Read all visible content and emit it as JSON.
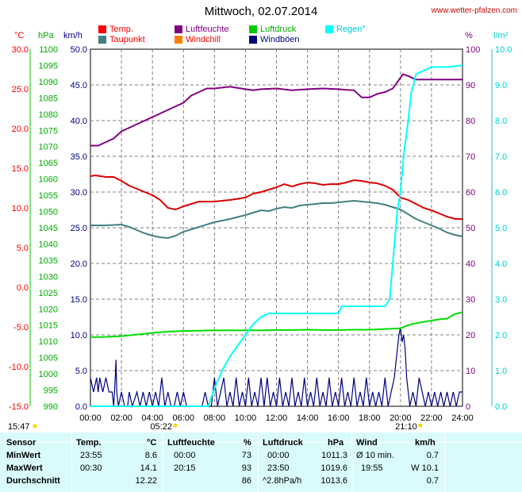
{
  "title": "Mittwoch, 02.07.2014",
  "url": "www.wetter-pfalzen.com",
  "legend": [
    {
      "label": "Temp.",
      "color": "#ff0000"
    },
    {
      "label": "Luftfeuchte",
      "color": "#800080"
    },
    {
      "label": "Luftdruck",
      "color": "#00cc00"
    },
    {
      "label": "Regen°",
      "color": "#00ffff"
    },
    {
      "label": "Taupunkt",
      "color": "#408080"
    },
    {
      "label": "Windchill",
      "color": "#ff8000"
    },
    {
      "label": "Windböen",
      "color": "#000080"
    }
  ],
  "units": {
    "temp": "°C",
    "press": "hPa",
    "wind": "km/h",
    "hum": "%",
    "rain": "l/m²"
  },
  "colors": {
    "temp": "#dd0000",
    "dew": "#408080",
    "hum": "#800080",
    "press": "#00dd00",
    "rain": "#00ffff",
    "gust": "#000080",
    "grid": "#808080",
    "bg": "#ffffff"
  },
  "chart_data": {
    "type": "line",
    "x_ticks": [
      "00:00",
      "02:00",
      "04:00",
      "06:00",
      "08:00",
      "10:00",
      "12:00",
      "14:00",
      "16:00",
      "18:00",
      "20:00",
      "22:00",
      "24:00"
    ],
    "axes": {
      "temp": {
        "ticks": [
          "30.0",
          "25.0",
          "20.0",
          "15.0",
          "10.0",
          "5.0",
          "0.0",
          "-5.0",
          "-10.0",
          "-15.0"
        ],
        "range": [
          -15,
          30
        ]
      },
      "press": {
        "ticks": [
          "1100",
          "1095",
          "1090",
          "1085",
          "1080",
          "1075",
          "1070",
          "1065",
          "1060",
          "1055",
          "1050",
          "1045",
          "1040",
          "1035",
          "1030",
          "1025",
          "1020",
          "1015",
          "1010",
          "1005",
          "1000",
          "995",
          "990"
        ],
        "range": [
          990,
          1100
        ]
      },
      "wind": {
        "ticks": [
          "50.0",
          "45.0",
          "40.0",
          "35.0",
          "30.0",
          "25.0",
          "20.0",
          "15.0",
          "10.0",
          "5.0",
          "0.0"
        ],
        "range": [
          0,
          50
        ]
      },
      "hum": {
        "ticks": [
          "100",
          "90",
          "80",
          "70",
          "60",
          "50",
          "40",
          "30",
          "20",
          "10",
          "0"
        ],
        "range": [
          0,
          100
        ]
      },
      "rain": {
        "ticks": [
          "10.0",
          "9.0",
          "8.0",
          "7.0",
          "6.0",
          "5.0",
          "4.0",
          "3.0",
          "2.0",
          "1.0",
          "0.0"
        ],
        "range": [
          0,
          10
        ]
      }
    },
    "series": [
      {
        "name": "Temp.",
        "axis": "temp",
        "x": [
          0,
          0.3,
          1,
          1.5,
          2,
          2.5,
          3,
          3.5,
          4,
          4.5,
          5,
          5.5,
          6,
          7,
          8,
          9,
          10,
          10.5,
          11,
          11.5,
          12,
          12.5,
          13,
          13.5,
          14,
          14.5,
          15,
          15.5,
          16,
          16.5,
          17,
          17.5,
          18,
          18.5,
          19,
          19.5,
          20,
          20.5,
          21,
          21.5,
          22,
          22.5,
          23,
          23.55,
          24
        ],
        "y": [
          14.0,
          14.1,
          13.9,
          13.9,
          13.4,
          12.8,
          12.4,
          12.0,
          11.6,
          11.0,
          10.0,
          9.8,
          10.2,
          10.8,
          10.8,
          11.0,
          11.3,
          11.8,
          12.0,
          12.3,
          12.6,
          13.0,
          12.7,
          13.0,
          13.2,
          13.1,
          12.9,
          13.0,
          13.0,
          13.2,
          13.5,
          13.4,
          13.2,
          13.1,
          12.8,
          12.3,
          11.3,
          11.0,
          10.5,
          10.0,
          9.7,
          9.3,
          8.9,
          8.6,
          8.6
        ]
      },
      {
        "name": "Taupunkt",
        "axis": "temp",
        "x": [
          0,
          1,
          2,
          2.5,
          3,
          3.5,
          4,
          4.5,
          5,
          5.5,
          6,
          7,
          8,
          9,
          10,
          10.5,
          11,
          11.5,
          12,
          12.5,
          13,
          13.5,
          14,
          14.5,
          15,
          15.5,
          16,
          16.5,
          17,
          17.5,
          18,
          18.5,
          19,
          19.5,
          20,
          20.5,
          21,
          21.5,
          22,
          22.5,
          23,
          23.5,
          24
        ],
        "y": [
          7.8,
          7.8,
          7.9,
          7.6,
          7.2,
          6.8,
          6.5,
          6.3,
          6.2,
          6.5,
          7.0,
          7.6,
          8.2,
          8.6,
          9.1,
          9.4,
          9.7,
          9.6,
          9.9,
          10.1,
          10.0,
          10.3,
          10.4,
          10.5,
          10.6,
          10.6,
          10.7,
          10.8,
          10.9,
          10.8,
          10.7,
          10.6,
          10.4,
          10.1,
          9.8,
          9.2,
          8.6,
          8.2,
          7.8,
          7.4,
          6.9,
          6.6,
          6.4
        ]
      },
      {
        "name": "Luftfeuchte",
        "axis": "hum",
        "x": [
          0,
          0.5,
          1,
          1.5,
          2,
          2.5,
          3,
          3.5,
          4,
          4.5,
          5,
          5.5,
          6,
          6.5,
          7,
          7.5,
          8,
          9,
          10,
          10.5,
          11,
          12,
          13,
          14,
          15,
          16,
          16.5,
          17,
          17.5,
          18,
          18.5,
          19,
          19.5,
          20,
          20.15,
          20.5,
          21,
          22,
          24
        ],
        "y": [
          73,
          73,
          74,
          75,
          77,
          78,
          79,
          80,
          81,
          82,
          83,
          84,
          85,
          87,
          88,
          89,
          89,
          89.5,
          88.8,
          88.5,
          88.8,
          89,
          88.5,
          88.8,
          89,
          88.8,
          88.6,
          88.5,
          86.5,
          86.5,
          87.5,
          88,
          89,
          92,
          93,
          92.5,
          91.5,
          91.5,
          91.5
        ]
      },
      {
        "name": "Luftdruck",
        "axis": "press",
        "x": [
          0,
          1,
          2,
          3,
          4,
          5,
          6,
          7,
          8,
          9,
          10,
          11,
          12,
          13,
          14,
          15,
          16,
          17,
          18,
          19,
          20,
          20.5,
          21,
          21.5,
          22,
          22.5,
          23,
          23.5,
          24
        ],
        "y": [
          1011.3,
          1011.4,
          1011.6,
          1012.1,
          1012.6,
          1013.0,
          1013.2,
          1013.3,
          1013.4,
          1013.4,
          1013.4,
          1013.4,
          1013.5,
          1013.5,
          1013.6,
          1013.5,
          1013.5,
          1013.6,
          1013.6,
          1013.8,
          1014.0,
          1015.0,
          1015.6,
          1016.0,
          1016.4,
          1016.8,
          1017.0,
          1018.4,
          1019.0
        ]
      },
      {
        "name": "Regen°",
        "axis": "rain",
        "x": [
          0,
          7.6,
          8,
          8.5,
          9,
          9.5,
          10,
          10.5,
          11,
          11.5,
          12,
          13,
          14,
          15,
          16,
          16.2,
          17,
          18,
          19,
          19.3,
          19.5,
          19.8,
          20,
          20.2,
          20.5,
          20.7,
          21,
          21.5,
          22,
          23,
          24
        ],
        "y": [
          0,
          0,
          0.5,
          1.0,
          1.4,
          1.7,
          2.0,
          2.3,
          2.5,
          2.6,
          2.6,
          2.6,
          2.6,
          2.6,
          2.6,
          2.8,
          2.8,
          2.8,
          2.8,
          3.0,
          4.0,
          5.5,
          6.0,
          7.0,
          8.0,
          8.8,
          9.3,
          9.4,
          9.5,
          9.5,
          9.55
        ]
      }
    ],
    "gusts": {
      "name": "Windböen",
      "axis": "wind",
      "x": [
        0,
        0.2,
        0.4,
        0.5,
        0.6,
        0.8,
        1.0,
        1.2,
        1.4,
        1.5,
        1.6,
        1.65,
        1.7,
        1.8,
        2.0,
        2.2,
        2.4,
        2.5,
        2.7,
        3.0,
        3.2,
        3.4,
        3.6,
        3.8,
        4.0,
        4.2,
        4.4,
        4.6,
        4.8,
        5.0,
        5.2,
        5.4,
        5.6,
        5.8,
        6.0,
        6.2,
        6.4,
        6.6,
        6.8,
        7.0,
        7.2,
        7.4,
        7.6,
        7.8,
        8.0,
        8.2,
        8.4,
        8.6,
        8.8,
        9.0,
        9.2,
        9.4,
        9.6,
        9.8,
        10.0,
        10.2,
        10.4,
        10.6,
        10.8,
        11.0,
        11.2,
        11.4,
        11.6,
        11.8,
        12.0,
        12.2,
        12.4,
        12.6,
        12.8,
        13.0,
        13.2,
        13.4,
        13.6,
        13.8,
        14.0,
        14.2,
        14.4,
        14.6,
        14.8,
        15.0,
        15.2,
        15.4,
        15.6,
        15.8,
        16.0,
        16.2,
        16.4,
        16.6,
        16.8,
        17.0,
        17.2,
        17.4,
        17.6,
        17.8,
        18.0,
        18.2,
        18.4,
        18.6,
        18.8,
        19.0,
        19.2,
        19.4,
        19.6,
        19.8,
        19.9,
        20.0,
        20.1,
        20.2,
        20.3,
        20.4,
        20.6,
        20.8,
        21.0,
        21.2,
        21.4,
        21.6,
        21.8,
        22.0,
        22.2,
        22.4,
        22.6,
        22.8,
        23.0,
        23.2,
        23.4,
        23.6,
        23.8,
        24.0
      ],
      "y": [
        4,
        2,
        4,
        2,
        4,
        2,
        4,
        2,
        2,
        0,
        4,
        6.5,
        2,
        0,
        2,
        0,
        0,
        2,
        0,
        2,
        0,
        2,
        0,
        2,
        0,
        2,
        0,
        4,
        0,
        2,
        0,
        0,
        2,
        0,
        2,
        0,
        0,
        0,
        0,
        0,
        0,
        2,
        0,
        0,
        4,
        0,
        2,
        4,
        0,
        2,
        0,
        4,
        0,
        2,
        0,
        4,
        0,
        2,
        0,
        4,
        0,
        4,
        0,
        2,
        0,
        4,
        0,
        2,
        0,
        4,
        0,
        2,
        0,
        4,
        0,
        2,
        0,
        4,
        0,
        2,
        0,
        4,
        0,
        2,
        0,
        4,
        0,
        2,
        0,
        4,
        0,
        2,
        0,
        4,
        0,
        2,
        0,
        2,
        0,
        4,
        0,
        2,
        4,
        8,
        10,
        11,
        9,
        10,
        8,
        4,
        0,
        2,
        0,
        4,
        2,
        0,
        2,
        0,
        2,
        0,
        2,
        0,
        2,
        0,
        2,
        0,
        2,
        2
      ]
    },
    "sun": [
      {
        "label": "05:22",
        "time": 5.37
      },
      {
        "label": "21:10",
        "time": 21.17
      }
    ],
    "left_marker": "15:47"
  },
  "table": {
    "headers": {
      "sensor": "Sensor",
      "temp": "Temp.",
      "temp_unit": "°C",
      "hum": "Luftfeuchte",
      "hum_unit": "%",
      "press": "Luftdruck",
      "press_unit": "hPa",
      "wind": "Wind",
      "wind_unit": "km/h"
    },
    "rows": [
      {
        "label": "MinWert",
        "t_time": "23:55",
        "t_val": "8.6",
        "h_time": "00:00",
        "h_val": "73",
        "p_time": "00:00",
        "p_val": "1011.3",
        "w_time": "Ø 10 min.",
        "w_val": "0.7"
      },
      {
        "label": "MaxWert",
        "t_time": "00:30",
        "t_val": "14.1",
        "h_time": "20:15",
        "h_val": "93",
        "p_time": "23:50",
        "p_val": "1019.6",
        "w_time": "19:55",
        "w_val": "W 10.1"
      },
      {
        "label": "Durchschnitt",
        "t_time": "",
        "t_val": "12.22",
        "h_time": "",
        "h_val": "86",
        "p_time": "^2.8hPa/h",
        "p_val": "1013.6",
        "w_time": "",
        "w_val": "0.7"
      }
    ]
  }
}
